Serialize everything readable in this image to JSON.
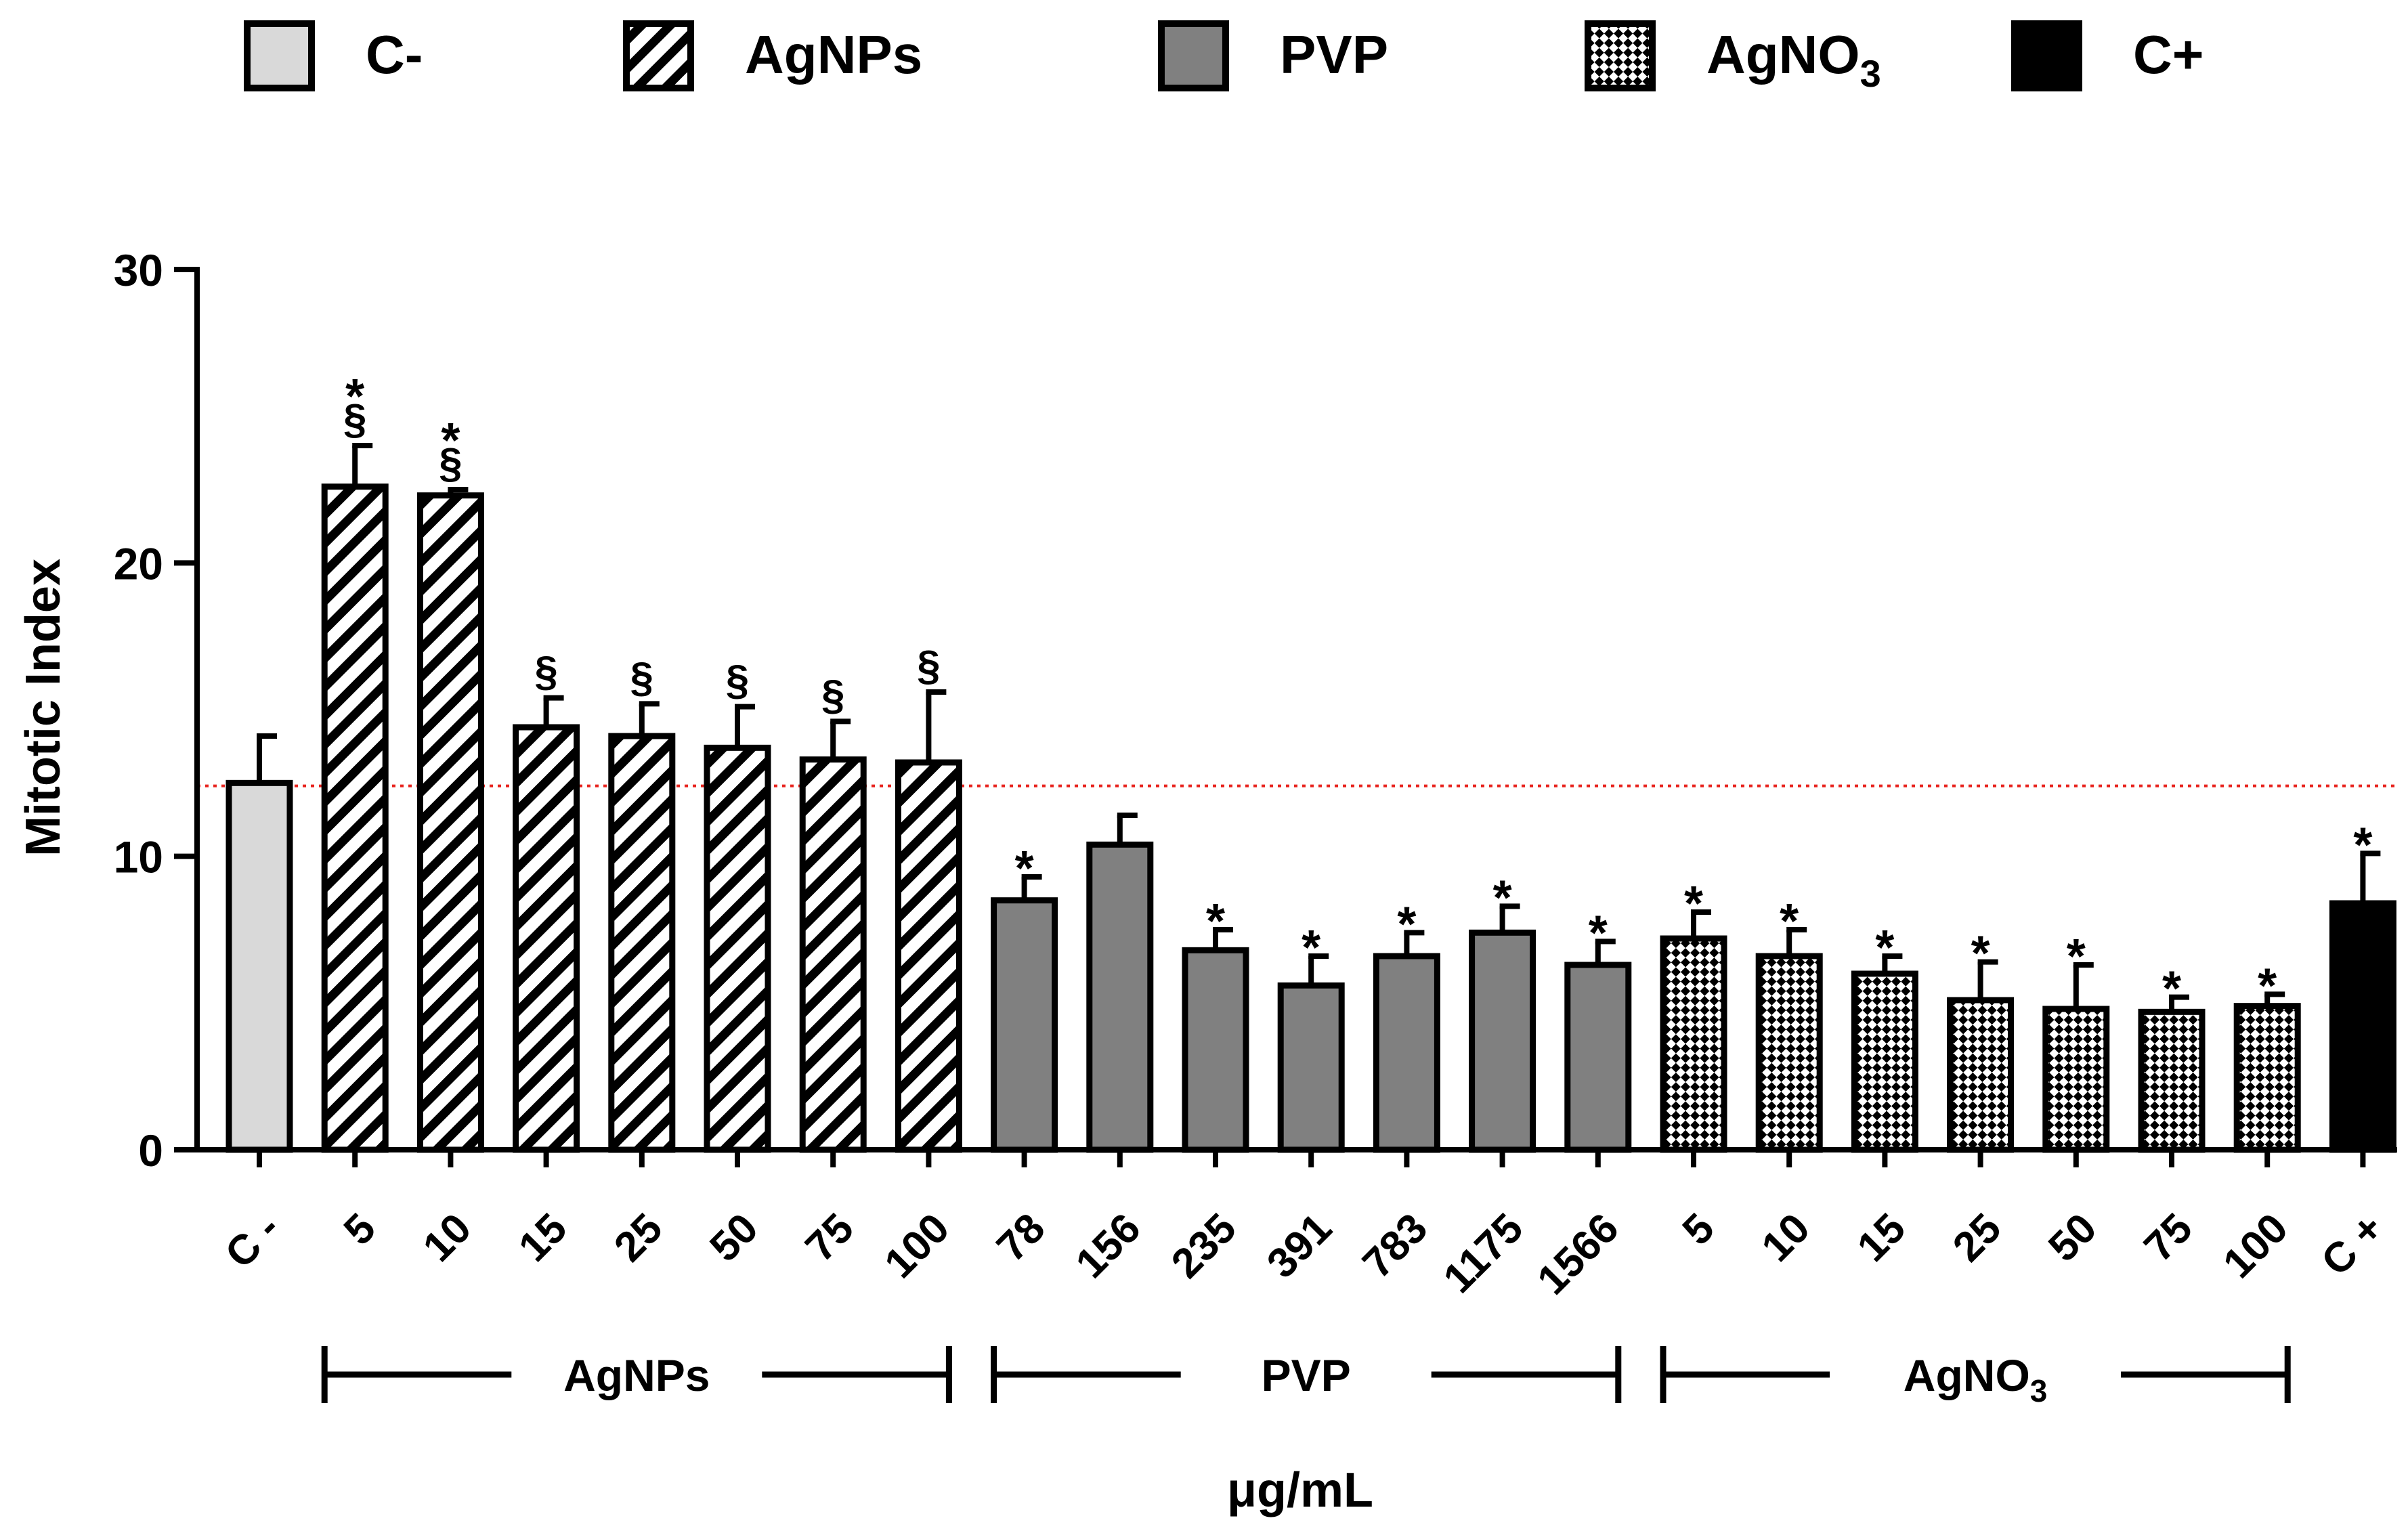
{
  "chart_data": {
    "type": "bar",
    "ylabel": "Mitotic Index",
    "xlabel": "μg/mL",
    "ylim": [
      0,
      30
    ],
    "yticks": [
      0,
      10,
      20,
      30
    ],
    "reference_line": 12.4,
    "legend": [
      {
        "key": "cneg",
        "label": "C-"
      },
      {
        "key": "agnps",
        "label": "AgNPs"
      },
      {
        "key": "pvp",
        "label": "PVP"
      },
      {
        "key": "agno3",
        "label": "AgNO",
        "sub": "3"
      },
      {
        "key": "cpos",
        "label": "C+"
      }
    ],
    "groups": [
      {
        "label": "AgNPs",
        "from": 1,
        "to": 7
      },
      {
        "label": "PVP",
        "from": 8,
        "to": 14
      },
      {
        "label": "AgNO",
        "sub": "3",
        "from": 15,
        "to": 21
      }
    ],
    "bars": [
      {
        "label": "C -",
        "series": "cneg",
        "value": 12.5,
        "error": 1.6,
        "annot": []
      },
      {
        "label": "5",
        "series": "agnps",
        "value": 22.6,
        "error": 1.4,
        "annot": [
          "§",
          "*"
        ]
      },
      {
        "label": "10",
        "series": "agnps",
        "value": 22.3,
        "error": 0.2,
        "annot": [
          "§",
          "*"
        ]
      },
      {
        "label": "15",
        "series": "agnps",
        "value": 14.4,
        "error": 1.0,
        "annot": [
          "§"
        ]
      },
      {
        "label": "25",
        "series": "agnps",
        "value": 14.1,
        "error": 1.1,
        "annot": [
          "§"
        ]
      },
      {
        "label": "50",
        "series": "agnps",
        "value": 13.7,
        "error": 1.4,
        "annot": [
          "§"
        ]
      },
      {
        "label": "75",
        "series": "agnps",
        "value": 13.3,
        "error": 1.3,
        "annot": [
          "§"
        ]
      },
      {
        "label": "100",
        "series": "agnps",
        "value": 13.2,
        "error": 2.4,
        "annot": [
          "§"
        ]
      },
      {
        "label": "78",
        "series": "pvp",
        "value": 8.5,
        "error": 0.8,
        "annot": [
          "*"
        ]
      },
      {
        "label": "156",
        "series": "pvp",
        "value": 10.4,
        "error": 1.0,
        "annot": []
      },
      {
        "label": "235",
        "series": "pvp",
        "value": 6.8,
        "error": 0.7,
        "annot": [
          "*"
        ]
      },
      {
        "label": "391",
        "series": "pvp",
        "value": 5.6,
        "error": 1.0,
        "annot": [
          "*"
        ]
      },
      {
        "label": "783",
        "series": "pvp",
        "value": 6.6,
        "error": 0.8,
        "annot": [
          "*"
        ]
      },
      {
        "label": "1175",
        "series": "pvp",
        "value": 7.4,
        "error": 0.9,
        "annot": [
          "*"
        ]
      },
      {
        "label": "1566",
        "series": "pvp",
        "value": 6.3,
        "error": 0.8,
        "annot": [
          "*"
        ]
      },
      {
        "label": "5",
        "series": "agno3",
        "value": 7.2,
        "error": 0.9,
        "annot": [
          "*"
        ]
      },
      {
        "label": "10",
        "series": "agno3",
        "value": 6.6,
        "error": 0.9,
        "annot": [
          "*"
        ]
      },
      {
        "label": "15",
        "series": "agno3",
        "value": 6.0,
        "error": 0.6,
        "annot": [
          "*"
        ]
      },
      {
        "label": "25",
        "series": "agno3",
        "value": 5.1,
        "error": 1.3,
        "annot": [
          "*"
        ]
      },
      {
        "label": "50",
        "series": "agno3",
        "value": 4.8,
        "error": 1.5,
        "annot": [
          "*"
        ]
      },
      {
        "label": "75",
        "series": "agno3",
        "value": 4.7,
        "error": 0.5,
        "annot": [
          "*"
        ]
      },
      {
        "label": "100",
        "series": "agno3",
        "value": 4.9,
        "error": 0.4,
        "annot": [
          "*"
        ]
      },
      {
        "label": "C +",
        "series": "cpos",
        "value": 8.4,
        "error": 1.7,
        "annot": [
          "*"
        ]
      }
    ]
  }
}
